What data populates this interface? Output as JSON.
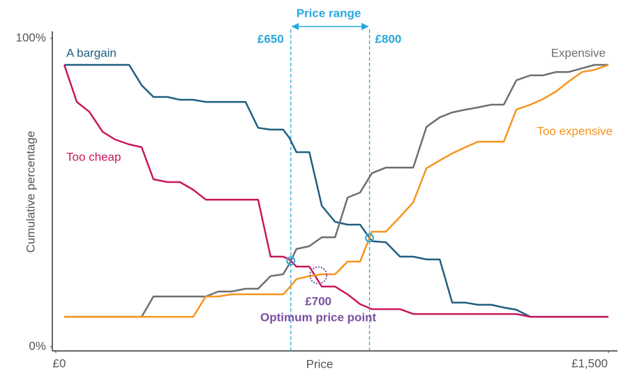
{
  "chart_data": {
    "type": "line",
    "title": "Price range",
    "x_label": "Price",
    "y_label": "Cumulative percentage",
    "annotations": {
      "range_low": "£650",
      "range_high": "£800",
      "optimum_price": "£700",
      "optimum_label": "Optimum price point"
    },
    "xlim": [
      0,
      1500
    ],
    "xticks": [
      {
        "value": 0,
        "label": "£0"
      },
      {
        "value": 1500,
        "label": "£1,500"
      }
    ],
    "ylim": [
      0,
      100
    ],
    "yticks": [
      {
        "value": 0,
        "label": "0%"
      },
      {
        "value": 100,
        "label": "100%"
      }
    ],
    "x": [
      23,
      57,
      91,
      127,
      161,
      199,
      233,
      265,
      303,
      337,
      373,
      407,
      441,
      477,
      515,
      549,
      583,
      617,
      634,
      653,
      688,
      722,
      758,
      792,
      826,
      858,
      896,
      934,
      970,
      1006,
      1042,
      1076,
      1112,
      1146,
      1182,
      1216,
      1250,
      1288,
      1322,
      1358,
      1392,
      1428,
      1462,
      1500
    ],
    "series": [
      {
        "name": "A bargain",
        "color": "#1f5f80",
        "values": [
          91.4,
          91.4,
          91.4,
          91.4,
          91.4,
          91.4,
          84.8,
          81.0,
          81.0,
          80.1,
          80.1,
          79.4,
          79.4,
          79.4,
          79.4,
          71.0,
          70.4,
          70.4,
          67.7,
          63.1,
          63.1,
          45.7,
          40.5,
          39.6,
          39.6,
          34.2,
          33.9,
          29.2,
          29.2,
          28.3,
          28.3,
          14.3,
          14.3,
          13.6,
          13.6,
          12.7,
          12.0,
          9.7,
          9.7,
          9.7,
          9.7,
          9.7,
          9.7,
          9.7
        ]
      },
      {
        "name": "Too cheap",
        "color": "#c8175d",
        "values": [
          91.4,
          79.4,
          76.2,
          69.7,
          67.2,
          65.6,
          64.7,
          54.3,
          53.4,
          53.4,
          50.9,
          47.7,
          47.7,
          47.7,
          47.7,
          47.7,
          29.2,
          29.2,
          28.3,
          26.0,
          26.0,
          19.5,
          19.5,
          17.0,
          13.8,
          12.2,
          12.2,
          12.2,
          10.6,
          10.6,
          10.6,
          10.6,
          10.6,
          10.6,
          10.6,
          10.6,
          10.6,
          9.7,
          9.7,
          9.7,
          9.7,
          9.7,
          9.7,
          9.7
        ]
      },
      {
        "name": "Expensive",
        "color": "#6d6e70",
        "values": [
          9.7,
          9.7,
          9.7,
          9.7,
          9.7,
          9.7,
          9.7,
          16.3,
          16.3,
          16.3,
          16.3,
          16.3,
          17.9,
          17.9,
          18.8,
          18.8,
          22.9,
          23.5,
          26.9,
          31.7,
          32.6,
          35.5,
          35.5,
          48.4,
          50.0,
          56.3,
          58.1,
          58.1,
          58.1,
          71.3,
          74.4,
          76.0,
          76.9,
          77.6,
          78.5,
          78.5,
          86.4,
          88.0,
          88.0,
          89.1,
          89.1,
          90.3,
          91.4,
          91.4
        ]
      },
      {
        "name": "Too expensive",
        "color": "#f7941d",
        "values": [
          9.7,
          9.7,
          9.7,
          9.7,
          9.7,
          9.7,
          9.7,
          9.7,
          9.7,
          9.7,
          9.7,
          16.3,
          16.3,
          17.0,
          17.0,
          17.0,
          17.0,
          17.0,
          19.2,
          21.9,
          22.9,
          23.5,
          23.5,
          27.6,
          27.6,
          37.3,
          37.3,
          42.1,
          46.8,
          57.9,
          60.4,
          62.7,
          64.7,
          66.5,
          66.5,
          66.5,
          76.9,
          78.5,
          80.3,
          82.8,
          86.0,
          89.1,
          89.8,
          91.4
        ]
      }
    ]
  }
}
